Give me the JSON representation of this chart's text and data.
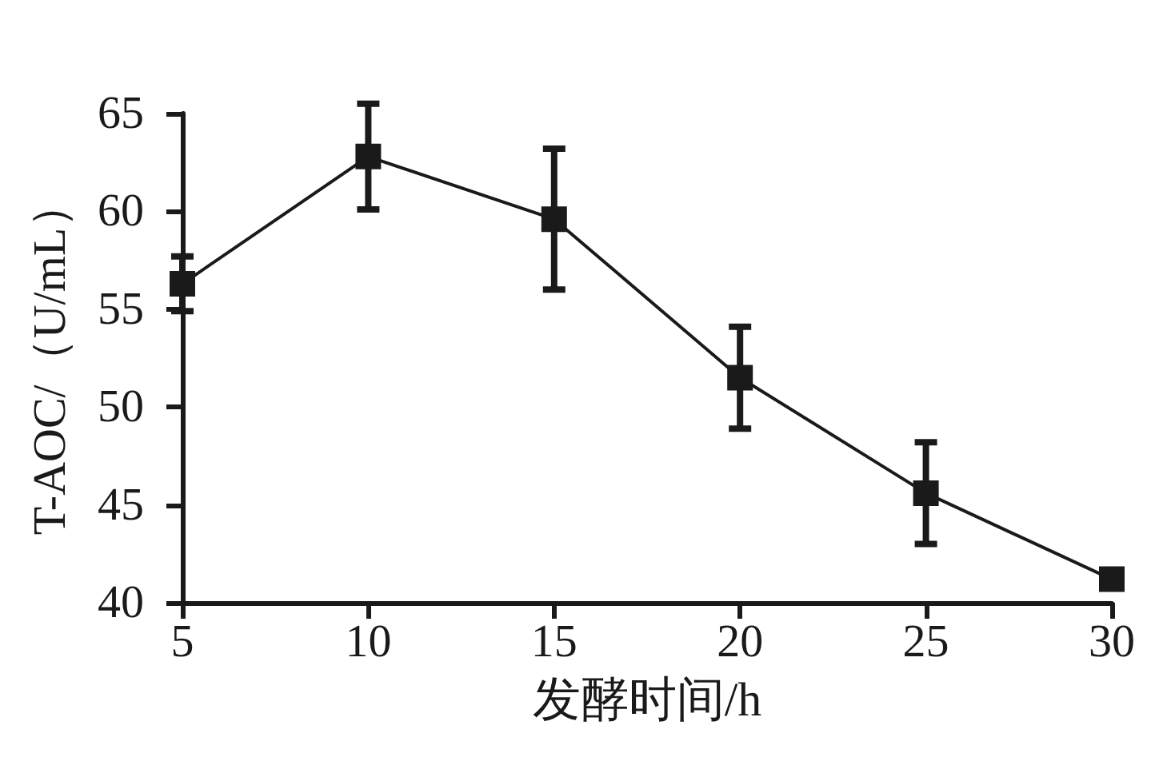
{
  "chart_data": {
    "type": "line",
    "x": [
      5,
      10,
      15,
      20,
      25,
      30
    ],
    "values": [
      56.3,
      62.8,
      59.6,
      51.5,
      45.6,
      41.2
    ],
    "errors": [
      1.4,
      2.7,
      3.6,
      2.6,
      2.6,
      null
    ],
    "color": "#1a1a1a",
    "marker": "square",
    "line_style": "solid",
    "xlim": [
      5,
      30
    ],
    "xticks": [
      5,
      10,
      15,
      20,
      25,
      30
    ],
    "ylim": [
      40,
      65
    ],
    "yticks": [
      40,
      45,
      50,
      55,
      60,
      65
    ],
    "xlabel": "发酵时间/h",
    "ylabel": "T-AOC/（U/mL）"
  }
}
